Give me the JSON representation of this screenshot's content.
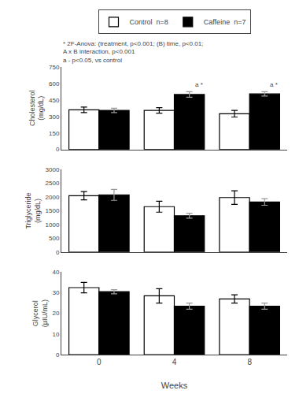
{
  "chart_data": [
    {
      "type": "bar",
      "categories": [
        "0",
        "4",
        "8"
      ],
      "series": [
        {
          "name": "Control  n=8",
          "color": "white",
          "values": [
            360,
            355,
            325
          ],
          "errors": [
            25,
            25,
            30
          ]
        },
        {
          "name": "Caffeine  n=7",
          "color": "black",
          "values": [
            355,
            500,
            505
          ],
          "errors": [
            20,
            25,
            20
          ]
        }
      ],
      "ylabel": "Cholesterol\n(mg/dL)",
      "ylim": [
        0,
        750
      ],
      "yticks": [
        0,
        150,
        300,
        450,
        600,
        750
      ],
      "grid": false,
      "legend": "top",
      "tick_labels": "y",
      "annotations": [
        {
          "category": "4",
          "series": "Caffeine  n=7",
          "text": "a *",
          "y": 540
        },
        {
          "category": "8",
          "series": "Caffeine  n=7",
          "text": "a *",
          "y": 540
        },
        {
          "text": "* 2F-Anova: (treatment, p<0.001; (B) time, p<0.01;\nA x B interaction, p<0.001\na - p<0.05, vs control"
        }
      ]
    },
    {
      "type": "bar",
      "categories": [
        "0",
        "4",
        "8"
      ],
      "series": [
        {
          "name": "Control  n=8",
          "color": "white",
          "values": [
            2050,
            1650,
            1980
          ],
          "errors": [
            150,
            200,
            250
          ]
        },
        {
          "name": "Caffeine  n=7",
          "color": "black",
          "values": [
            2080,
            1320,
            1820
          ],
          "errors": [
            200,
            90,
            120
          ]
        }
      ],
      "ylabel": "Triglyceride\n(mg/dL)",
      "ylim": [
        0,
        3000
      ],
      "yticks": [
        0,
        500,
        1000,
        1500,
        2000,
        2500,
        3000
      ],
      "grid": false,
      "tick_labels": "y"
    },
    {
      "type": "bar",
      "categories": [
        "0",
        "4",
        "8"
      ],
      "series": [
        {
          "name": "Control  n=8",
          "color": "white",
          "values": [
            32.5,
            28.5,
            27.0
          ],
          "errors": [
            2.5,
            3.5,
            2.0
          ]
        },
        {
          "name": "Caffeine  n=7",
          "color": "black",
          "values": [
            30.5,
            23.5,
            23.5
          ],
          "errors": [
            1.0,
            1.5,
            1.5
          ]
        }
      ],
      "ylabel": "Glycerol\n(µIU/mL)",
      "xlabel": "Weeks",
      "ylim": [
        0,
        40
      ],
      "yticks": [
        0,
        10,
        20,
        30,
        40
      ],
      "grid": false
    }
  ]
}
